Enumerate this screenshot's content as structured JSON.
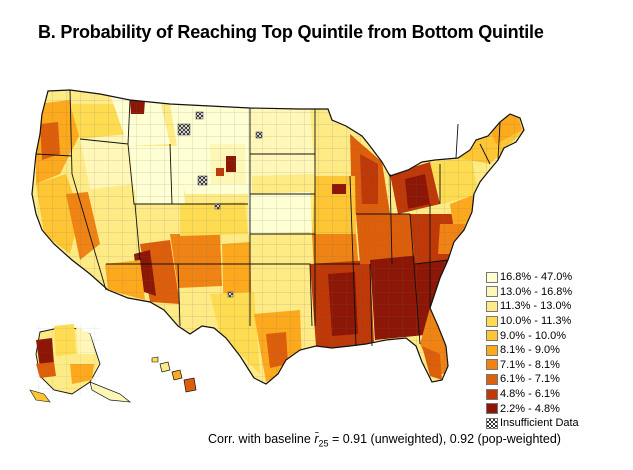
{
  "title": "B. Probability of Reaching Top Quintile from Bottom Quintile",
  "legend": {
    "items": [
      {
        "label": "16.8% - 47.0%",
        "color": "#ffffd4"
      },
      {
        "label": "13.0% - 16.8%",
        "color": "#fff7b8"
      },
      {
        "label": "11.3% - 13.0%",
        "color": "#feeb86"
      },
      {
        "label": "10.0% - 11.3%",
        "color": "#fedc52"
      },
      {
        "label": "9.0% - 10.0%",
        "color": "#fec634"
      },
      {
        "label": "8.1% - 9.0%",
        "color": "#fca91e"
      },
      {
        "label": "7.1% - 8.1%",
        "color": "#ef8414"
      },
      {
        "label": "6.1% - 7.1%",
        "color": "#dd5f0c"
      },
      {
        "label": "4.8% - 6.1%",
        "color": "#bf3908"
      },
      {
        "label": "2.2% - 4.8%",
        "color": "#8c1706"
      }
    ],
    "insufficient_label": "Insufficient Data"
  },
  "correlation": {
    "prefix": "Corr. with baseline ",
    "symbol": "r̄",
    "subscript": "25",
    "suffix": " = 0.91 (unweighted), 0.92 (pop-weighted)"
  }
}
